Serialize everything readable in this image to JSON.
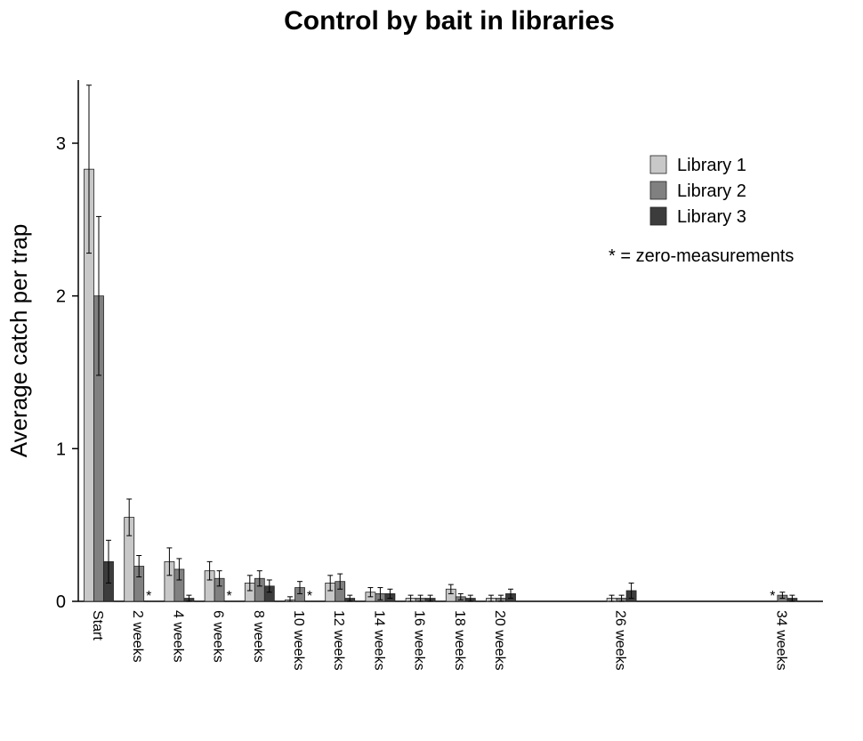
{
  "chart_data": {
    "type": "bar",
    "title": "Control by bait in libraries",
    "xlabel": "",
    "ylabel": "Average catch per trap",
    "ylim": [
      0,
      3.4
    ],
    "yticks": [
      "0",
      "1",
      "2",
      "3"
    ],
    "categories": [
      "Start",
      "2 weeks",
      "4 weeks",
      "6 weeks",
      "8 weeks",
      "10 weeks",
      "12 weeks",
      "14 weeks",
      "16 weeks",
      "18 weeks",
      "20 weeks",
      "26 weeks",
      "34 weeks"
    ],
    "x_weeks": [
      0,
      2,
      4,
      6,
      8,
      10,
      12,
      14,
      16,
      18,
      20,
      26,
      34
    ],
    "series": [
      {
        "name": "Library 1",
        "color": "#c8c8c8",
        "values": [
          2.83,
          0.55,
          0.26,
          0.2,
          0.12,
          0.01,
          0.12,
          0.06,
          0.02,
          0.08,
          0.02,
          0.02,
          null
        ],
        "errors": [
          0.55,
          0.12,
          0.09,
          0.06,
          0.05,
          0.02,
          0.05,
          0.03,
          0.02,
          0.03,
          0.02,
          0.02,
          null
        ]
      },
      {
        "name": "Library 2",
        "color": "#808080",
        "values": [
          2.0,
          0.23,
          0.21,
          0.15,
          0.15,
          0.09,
          0.13,
          0.05,
          0.02,
          0.03,
          0.02,
          0.02,
          0.04
        ],
        "errors": [
          0.52,
          0.07,
          0.07,
          0.05,
          0.05,
          0.04,
          0.05,
          0.04,
          0.02,
          0.02,
          0.02,
          0.02,
          0.02
        ]
      },
      {
        "name": "Library 3",
        "color": "#3c3c3c",
        "values": [
          0.26,
          null,
          0.02,
          null,
          0.1,
          null,
          0.02,
          0.05,
          0.02,
          0.02,
          0.05,
          0.07,
          0.02
        ],
        "errors": [
          0.14,
          null,
          0.02,
          null,
          0.04,
          null,
          0.02,
          0.03,
          0.02,
          0.02,
          0.03,
          0.05,
          0.02
        ]
      }
    ],
    "zero_markers": [
      {
        "category": "2 weeks",
        "series": "Library 3",
        "symbol": "*"
      },
      {
        "category": "6 weeks",
        "series": "Library 3",
        "symbol": "*"
      },
      {
        "category": "10 weeks",
        "series": "Library 3",
        "symbol": "*"
      },
      {
        "category": "34 weeks",
        "series": "Library 1",
        "symbol": "*"
      }
    ],
    "legend": {
      "placement": "top-right",
      "entries": [
        "Library 1",
        "Library 2",
        "Library 3"
      ],
      "note": "* = zero-measurements"
    },
    "grid": false
  }
}
